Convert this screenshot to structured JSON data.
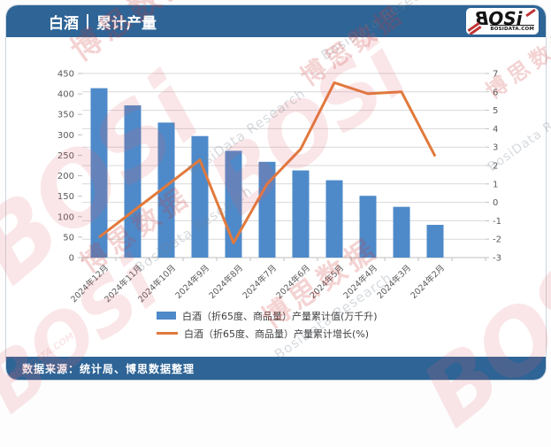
{
  "header": {
    "title_primary": "白酒",
    "title_secondary": "累计产量",
    "logo_text": "BOSi",
    "logo_sub": "BOSIDATA.COM"
  },
  "footer": {
    "source_text": "数据来源：统计局、博思数据整理"
  },
  "legend": {
    "bar_label": "白酒（折65度、商品量）产量累计值(万千升)",
    "line_label": "白酒（折65度、商品量）产量累计增长(%)"
  },
  "watermarks": {
    "logo": "BOSi",
    "brand_cn": "博思数据",
    "research": "BosiData Research",
    "site": "BOSIDATA.COM"
  },
  "colors": {
    "header_blue": "#2e6496",
    "bar_blue": "#4e8ac9",
    "line_orange": "#e2793b",
    "gridline": "#d9d9d9",
    "axis_line": "#bfbfbf",
    "axis_text": "#595959"
  },
  "chart_data": {
    "type": "bar",
    "title": "白酒 | 累计产量",
    "categories": [
      "2024年12月",
      "2024年11月",
      "2024年10月",
      "2024年9月",
      "2024年8月",
      "2024年7月",
      "2024年6月",
      "2024年5月",
      "2024年4月",
      "2024年3月",
      "2024年2月"
    ],
    "series": [
      {
        "name": "白酒（折65度、商品量）产量累计值(万千升)",
        "type": "bar",
        "axis": "left",
        "color": "#4e8ac9",
        "values": [
          414,
          372,
          330,
          297,
          261,
          234,
          213,
          189,
          151,
          124,
          80
        ]
      },
      {
        "name": "白酒（折65度、商品量）产量累计增长(%)",
        "type": "line",
        "axis": "right",
        "color": "#e2793b",
        "values": [
          -1.9,
          -0.5,
          0.9,
          2.3,
          -2.2,
          1.0,
          2.9,
          6.5,
          5.9,
          6.0,
          2.5
        ]
      }
    ],
    "left_axis": {
      "min": 0,
      "max": 450,
      "step": 50,
      "ticks": [
        0,
        50,
        100,
        150,
        200,
        250,
        300,
        350,
        400,
        450
      ]
    },
    "right_axis": {
      "min": -3,
      "max": 7,
      "step": 1,
      "ticks": [
        -3,
        -2,
        -1,
        0,
        1,
        2,
        3,
        4,
        5,
        6,
        7
      ]
    },
    "grid": true,
    "legend_position": "bottom",
    "xlabel": "",
    "ylabel_left": "万千升",
    "ylabel_right": "%"
  }
}
